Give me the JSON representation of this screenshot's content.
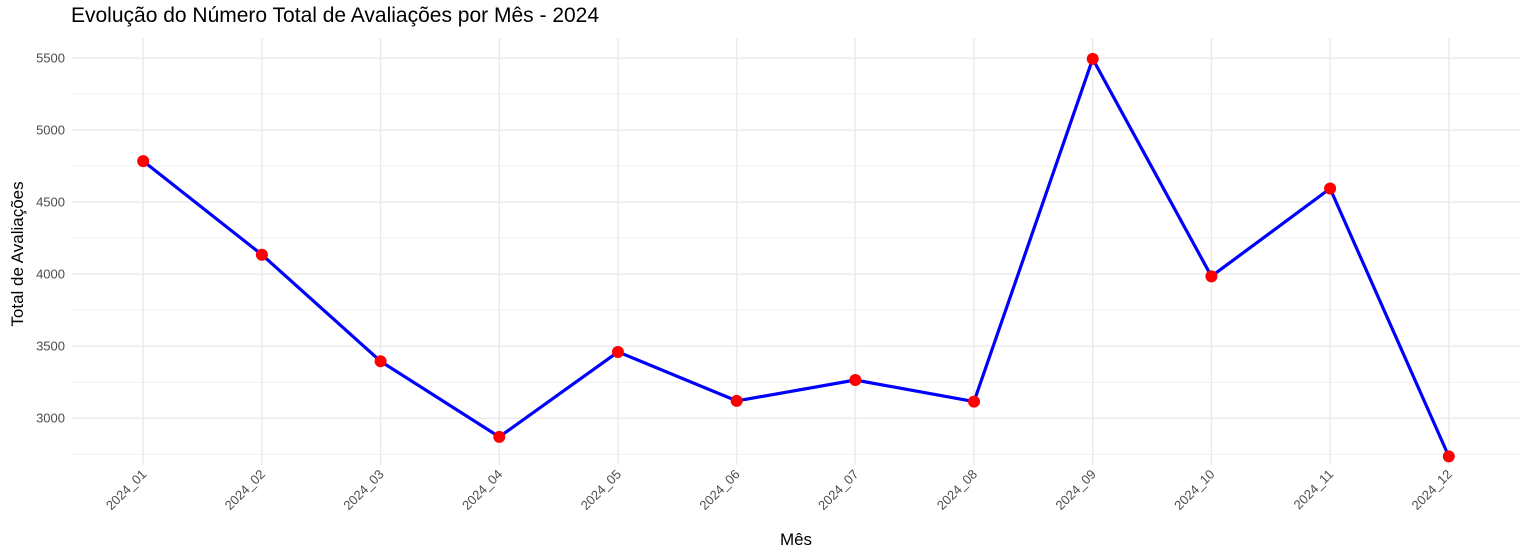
{
  "chart_data": {
    "type": "line",
    "title": "Evolução do Número Total de Avaliações por Mês - 2024",
    "xlabel": "Mês",
    "ylabel": "Total de Avaliações",
    "categories": [
      "2024_01",
      "2024_02",
      "2024_03",
      "2024_04",
      "2024_05",
      "2024_06",
      "2024_07",
      "2024_08",
      "2024_09",
      "2024_10",
      "2024_11",
      "2024_12"
    ],
    "series": [
      {
        "values": [
          4785,
          4135,
          3395,
          2870,
          3460,
          3120,
          3265,
          3115,
          5495,
          3985,
          4595,
          2735
        ]
      }
    ],
    "yticks": [
      "3000",
      "3500",
      "4000",
      "4500",
      "5000",
      "5500"
    ],
    "ylim": [
      2675,
      5640
    ],
    "grid": true,
    "legend": "none",
    "line_color": "#0000ff",
    "point_color": "#ff0000"
  }
}
